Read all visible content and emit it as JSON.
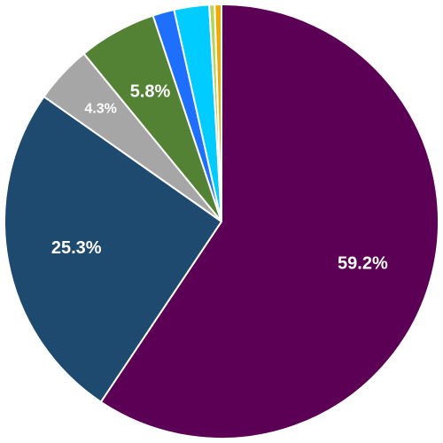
{
  "chart_data": {
    "type": "pie",
    "title": "",
    "start_angle_deg": 0,
    "direction": "clockwise",
    "slices": [
      {
        "value": 59.2,
        "label": "59.2%",
        "color": "#5C0055",
        "show_label": true
      },
      {
        "value": 25.3,
        "label": "25.3%",
        "color": "#1F4A70",
        "show_label": true
      },
      {
        "value": 4.3,
        "label": "4.3%",
        "color": "#A6A6A6",
        "show_label": true
      },
      {
        "value": 5.8,
        "label": "5.8%",
        "color": "#548235",
        "show_label": true
      },
      {
        "value": 1.6,
        "label": "",
        "color": "#1F6FFF",
        "show_label": false
      },
      {
        "value": 2.6,
        "label": "",
        "color": "#00CCFF",
        "show_label": false
      },
      {
        "value": 0.4,
        "label": "",
        "color": "#B7D35B",
        "show_label": false
      },
      {
        "value": 0.5,
        "label": "",
        "color": "#F2A900",
        "show_label": false
      }
    ]
  }
}
